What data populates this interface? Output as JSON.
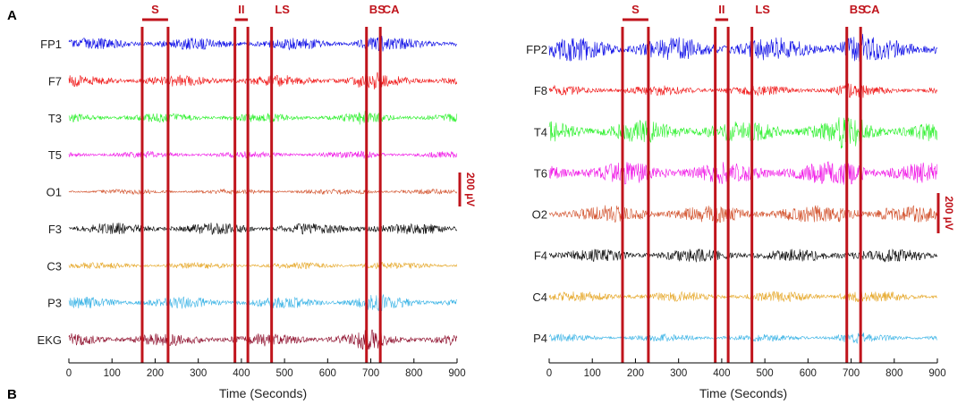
{
  "figure": {
    "panel_a_label": "A",
    "panel_b_label": "B"
  },
  "colors": {
    "marker": "#c0141c",
    "axis": "#000000",
    "tick_label": "#222222"
  },
  "chart_data": [
    {
      "type": "line",
      "title": "",
      "xlabel": "Time (Seconds)",
      "ylabel": "",
      "xlim": [
        0,
        900
      ],
      "xticks": [
        0,
        100,
        200,
        300,
        400,
        500,
        600,
        700,
        800,
        900
      ],
      "scale_bar": {
        "label": "200 µV",
        "value_uV": 200
      },
      "markers": [
        {
          "label": "S",
          "start": 170,
          "end": 230
        },
        {
          "label": "II",
          "start": 385,
          "end": 415
        },
        {
          "label": "LS",
          "start": 470,
          "end": 470
        },
        {
          "label": "BS",
          "start": 690,
          "end": 690
        },
        {
          "label": "CA",
          "start": 722,
          "end": 722
        }
      ],
      "series": [
        {
          "name": "FP1",
          "color": "#0a0ae6",
          "amplitude": 0.45
        },
        {
          "name": "F7",
          "color": "#f01414",
          "amplitude": 0.45
        },
        {
          "name": "T3",
          "color": "#2af02a",
          "amplitude": 0.35
        },
        {
          "name": "T5",
          "color": "#f014e6",
          "amplitude": 0.25
        },
        {
          "name": "O1",
          "color": "#d2502a",
          "amplitude": 0.2
        },
        {
          "name": "F3",
          "color": "#0a0a0a",
          "amplitude": 0.45
        },
        {
          "name": "C3",
          "color": "#e6a82a",
          "amplitude": 0.25
        },
        {
          "name": "P3",
          "color": "#3cb4e6",
          "amplitude": 0.45
        },
        {
          "name": "EKG",
          "color": "#8c0a28",
          "amplitude": 0.5
        }
      ]
    },
    {
      "type": "line",
      "title": "",
      "xlabel": "Time (Seconds)",
      "ylabel": "",
      "xlim": [
        0,
        900
      ],
      "xticks": [
        0,
        100,
        200,
        300,
        400,
        500,
        600,
        700,
        800,
        900
      ],
      "scale_bar": {
        "label": "200 µV",
        "value_uV": 200
      },
      "markers": [
        {
          "label": "S",
          "start": 170,
          "end": 230
        },
        {
          "label": "II",
          "start": 385,
          "end": 415
        },
        {
          "label": "LS",
          "start": 470,
          "end": 470
        },
        {
          "label": "BS",
          "start": 690,
          "end": 690
        },
        {
          "label": "CA",
          "start": 722,
          "end": 722
        }
      ],
      "series": [
        {
          "name": "FP2",
          "color": "#0a0ae6",
          "amplitude": 0.8
        },
        {
          "name": "F8",
          "color": "#f01414",
          "amplitude": 0.35
        },
        {
          "name": "T4",
          "color": "#2af02a",
          "amplitude": 0.75
        },
        {
          "name": "T6",
          "color": "#f014e6",
          "amplitude": 0.75
        },
        {
          "name": "O2",
          "color": "#d2502a",
          "amplitude": 0.6
        },
        {
          "name": "F4",
          "color": "#0a0a0a",
          "amplitude": 0.45
        },
        {
          "name": "C4",
          "color": "#e6a82a",
          "amplitude": 0.35
        },
        {
          "name": "P4",
          "color": "#3cb4e6",
          "amplitude": 0.25
        }
      ]
    }
  ]
}
